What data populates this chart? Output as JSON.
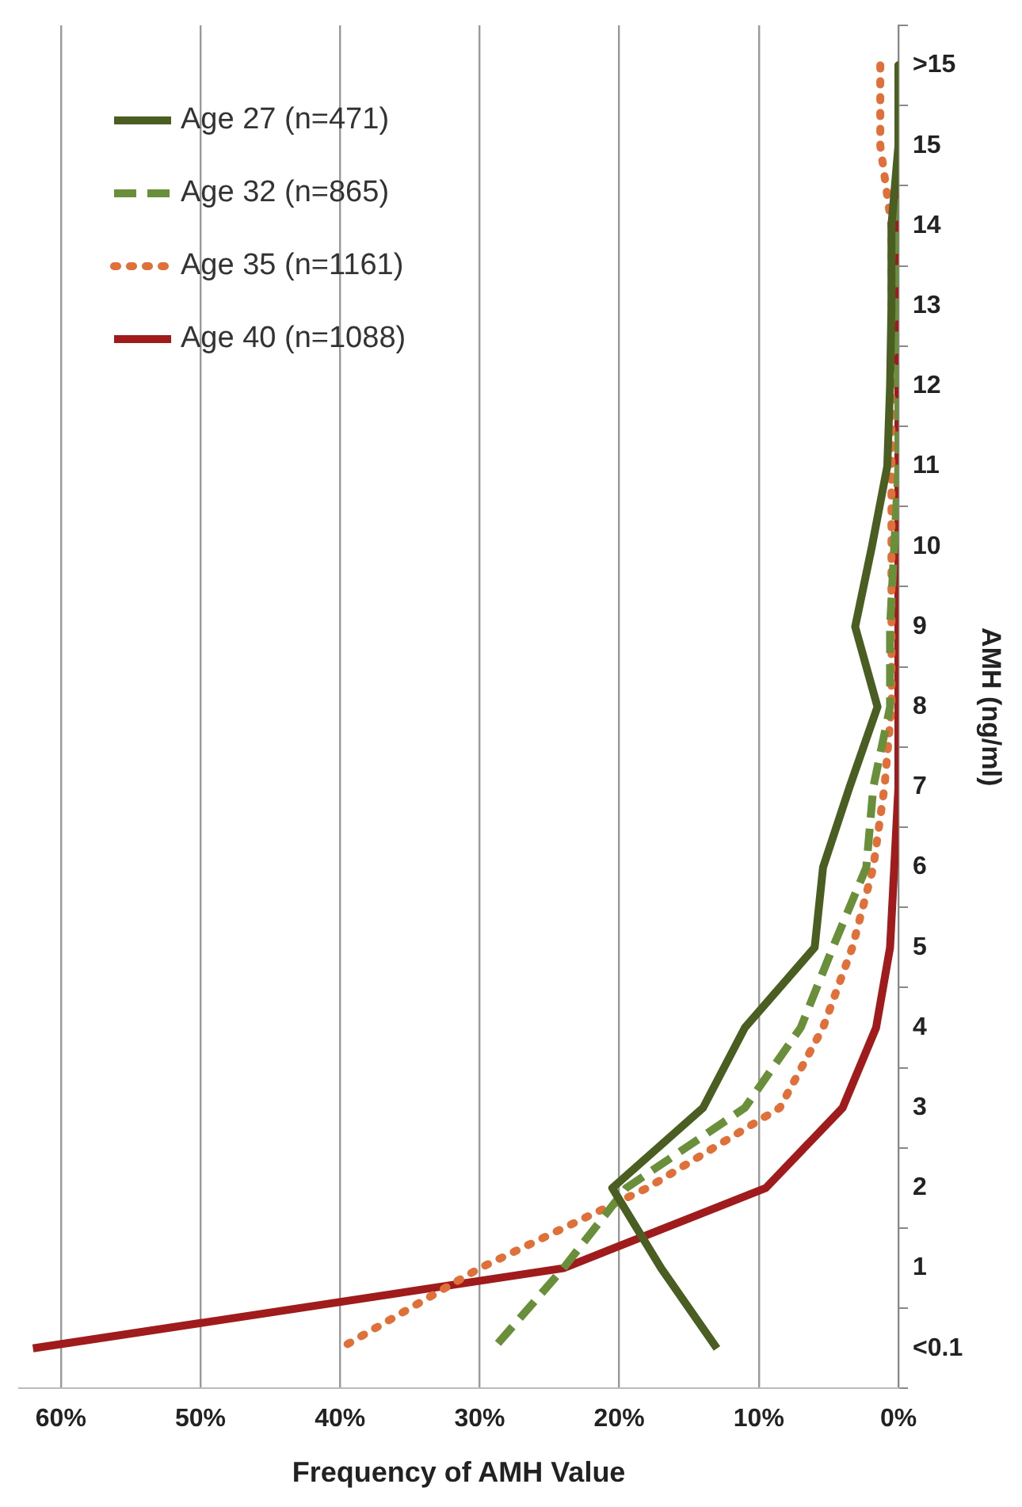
{
  "chart_data": {
    "type": "line",
    "orientation": "horizontal",
    "xlabel": "Frequency of AMH Value",
    "ylabel": "AMH (ng/ml)",
    "categories": [
      ">15",
      "15",
      "14",
      "13",
      "12",
      "11",
      "10",
      "9",
      "8",
      "7",
      "6",
      "5",
      "4",
      "3",
      "2",
      "1",
      "<0.1"
    ],
    "xlim": [
      63,
      0
    ],
    "xticks": [
      {
        "value": 60,
        "label": "60%"
      },
      {
        "value": 50,
        "label": "50%"
      },
      {
        "value": 40,
        "label": "40%"
      },
      {
        "value": 30,
        "label": "30%"
      },
      {
        "value": 20,
        "label": "20%"
      },
      {
        "value": 10,
        "label": "10%"
      },
      {
        "value": 0,
        "label": "0%"
      }
    ],
    "grid": "x",
    "legend": "top left",
    "series": [
      {
        "name": "Age 27 (n=471)",
        "color": "#4b5e22",
        "line_style": "solid",
        "values": [
          0,
          0,
          0.5,
          0.5,
          0.6,
          0.8,
          1.9,
          3.1,
          1.5,
          3.5,
          5.4,
          6,
          11,
          14,
          20.5,
          17,
          13
        ]
      },
      {
        "name": "Age 32 (n=865)",
        "color": "#6a8f3a",
        "line_style": "dashed",
        "values": [
          0,
          0,
          0,
          0,
          0,
          0,
          0.3,
          0.6,
          0.6,
          1.8,
          2.3,
          4.7,
          7,
          11,
          19.5,
          24,
          29
        ]
      },
      {
        "name": "Age 35 (n=1161)",
        "color": "#e0703a",
        "line_style": "dotted",
        "values": [
          1.3,
          1.3,
          0.5,
          0.5,
          0.5,
          0.5,
          0.5,
          0.5,
          0.5,
          1,
          1.8,
          3.3,
          5.4,
          8.5,
          18,
          30,
          40
        ]
      },
      {
        "name": "Age 40 (n=1088)",
        "color": "#a01c1c",
        "line_style": "solid",
        "values": [
          0,
          0,
          0,
          0,
          0,
          0,
          0,
          0,
          0,
          0,
          0.3,
          0.6,
          1.6,
          4,
          9.5,
          24,
          62
        ]
      }
    ]
  }
}
